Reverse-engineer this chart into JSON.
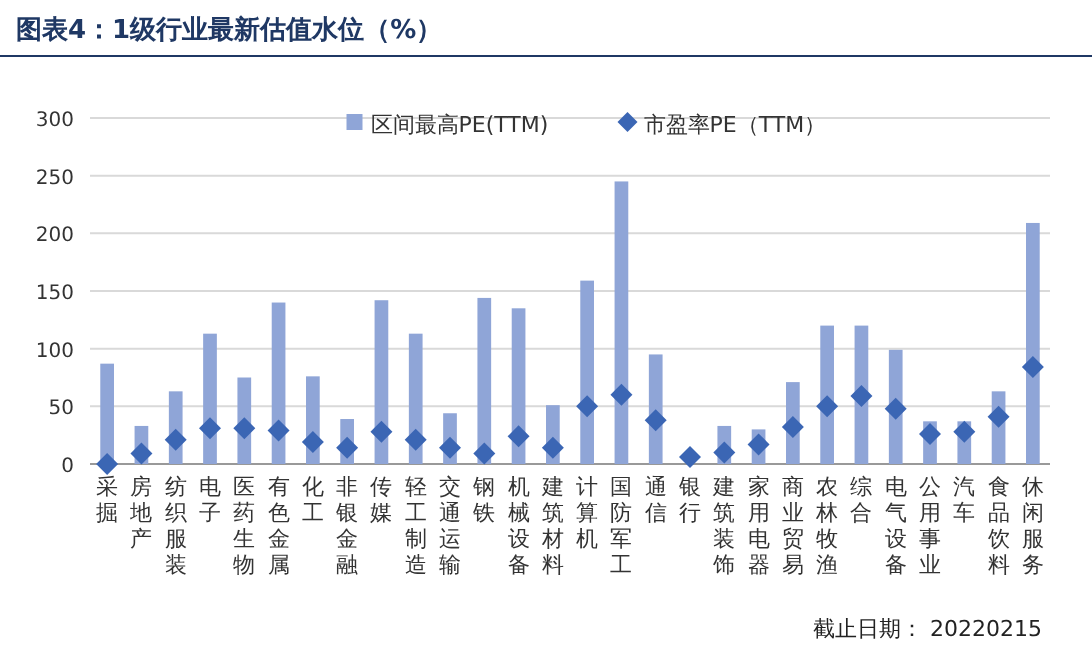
{
  "chart_data": {
    "type": "bar",
    "title": "图表4：1级行业最新估值水位（%）",
    "categories": [
      "采掘",
      "房地产",
      "纺织服装",
      "电子",
      "医药生物",
      "有色金属",
      "化工",
      "非银金融",
      "传媒",
      "轻工制造",
      "交通运输",
      "钢铁",
      "机械设备",
      "建筑材料",
      "计算机",
      "国防军工",
      "通信",
      "银行",
      "建筑装饰",
      "家用电器",
      "商业贸易",
      "农林牧渔",
      "综合",
      "电气设备",
      "公用事业",
      "汽车",
      "食品饮料",
      "休闲服务"
    ],
    "series": [
      {
        "name": "区间最高PE(TTM)",
        "type": "bar",
        "color": "#8fa5d7",
        "values": [
          87,
          33,
          63,
          113,
          75,
          140,
          76,
          39,
          142,
          113,
          44,
          144,
          135,
          51,
          159,
          245,
          95,
          null,
          33,
          30,
          71,
          120,
          120,
          99,
          37,
          37,
          63,
          209
        ]
      },
      {
        "name": "市盈率PE（TTM）",
        "type": "scatter",
        "color": "#3b66b4",
        "marker": "diamond",
        "values": [
          0,
          9,
          21,
          31,
          31,
          29,
          19,
          14,
          28,
          21,
          14,
          9,
          24,
          14,
          50,
          60,
          38,
          6,
          10,
          17,
          32,
          50,
          59,
          48,
          26,
          28,
          41,
          84
        ]
      }
    ],
    "ylim": [
      0,
      300
    ],
    "yticks": [
      0,
      50,
      100,
      150,
      200,
      250,
      300
    ],
    "grid": "y",
    "legend": "top",
    "annotations": [
      "截止日期： 20220215"
    ]
  }
}
